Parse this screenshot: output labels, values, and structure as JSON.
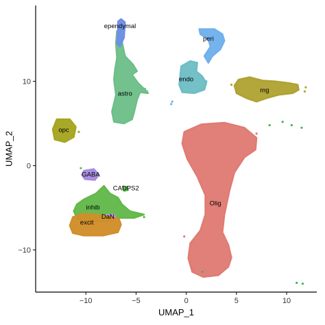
{
  "chart_data": {
    "type": "scatter",
    "xlabel": "UMAP_1",
    "ylabel": "UMAP_2",
    "xlim": [
      -15,
      13
    ],
    "ylim": [
      -15,
      19
    ],
    "x_ticks": [
      -10,
      -5,
      0,
      5,
      10
    ],
    "y_ticks": [
      -10,
      0,
      10
    ],
    "x_tick_labels": [
      "−10",
      "−5",
      "0",
      "5",
      "10"
    ],
    "y_tick_labels": [
      "−10",
      "0",
      "10"
    ],
    "grid": false,
    "legend": "none",
    "clusters": [
      {
        "name": "Olig",
        "color": "#E07B72",
        "label_at": [
          2.9,
          -4.5
        ],
        "outline": [
          [
            -0.2,
            4.0
          ],
          [
            1.5,
            4.9
          ],
          [
            3.8,
            5.1
          ],
          [
            5.8,
            4.5
          ],
          [
            7.0,
            3.3
          ],
          [
            6.9,
            1.9
          ],
          [
            5.8,
            1.0
          ],
          [
            4.8,
            -0.8
          ],
          [
            4.3,
            -3.0
          ],
          [
            3.8,
            -5.8
          ],
          [
            3.6,
            -7.9
          ],
          [
            4.2,
            -9.4
          ],
          [
            4.5,
            -10.9
          ],
          [
            4.2,
            -12.0
          ],
          [
            3.2,
            -13.0
          ],
          [
            1.7,
            -13.2
          ],
          [
            0.6,
            -12.6
          ],
          [
            0.2,
            -11.0
          ],
          [
            0.4,
            -9.2
          ],
          [
            1.4,
            -7.7
          ],
          [
            1.9,
            -5.8
          ],
          [
            1.9,
            -3.5
          ],
          [
            1.1,
            -1.3
          ],
          [
            0.1,
            0.8
          ],
          [
            -0.4,
            2.6
          ]
        ]
      },
      {
        "name": "astro",
        "color": "#6DBE87",
        "label_at": [
          -6.1,
          8.5
        ],
        "outline": [
          [
            -6.6,
            16.3
          ],
          [
            -6.4,
            14.7
          ],
          [
            -6.1,
            13.0
          ],
          [
            -5.3,
            12.0
          ],
          [
            -4.9,
            11.2
          ],
          [
            -5.4,
            10.8
          ],
          [
            -4.8,
            9.8
          ],
          [
            -4.1,
            9.0
          ],
          [
            -3.8,
            8.6
          ],
          [
            -4.6,
            8.7
          ],
          [
            -4.9,
            7.8
          ],
          [
            -5.2,
            6.3
          ],
          [
            -5.4,
            5.5
          ],
          [
            -6.2,
            5.0
          ],
          [
            -7.2,
            5.2
          ],
          [
            -7.4,
            6.4
          ],
          [
            -7.0,
            8.4
          ],
          [
            -7.2,
            10.2
          ],
          [
            -7.1,
            11.4
          ],
          [
            -6.9,
            12.8
          ],
          [
            -7.0,
            14.5
          ],
          [
            -6.9,
            16.0
          ]
        ]
      },
      {
        "name": "ependymal",
        "color": "#6E8FE6",
        "label_at": [
          -6.6,
          16.5
        ],
        "outline": [
          [
            -6.5,
            17.4
          ],
          [
            -6.1,
            17.0
          ],
          [
            -6.2,
            15.2
          ],
          [
            -6.6,
            14.1
          ],
          [
            -6.9,
            14.5
          ],
          [
            -6.8,
            16.0
          ],
          [
            -6.8,
            17.1
          ]
        ]
      },
      {
        "name": "peri",
        "color": "#6FB0EC",
        "label_at": [
          2.2,
          15.0
        ],
        "outline": [
          [
            1.3,
            16.2
          ],
          [
            2.8,
            16.2
          ],
          [
            3.6,
            15.6
          ],
          [
            3.8,
            14.8
          ],
          [
            3.4,
            13.8
          ],
          [
            2.6,
            13.0
          ],
          [
            2.2,
            12.2
          ],
          [
            1.8,
            13.0
          ],
          [
            2.4,
            14.1
          ],
          [
            2.2,
            15.0
          ],
          [
            1.4,
            15.6
          ]
        ]
      },
      {
        "name": "endo",
        "color": "#6DBDC5",
        "label_at": [
          0.0,
          10.2
        ],
        "outline": [
          [
            -0.5,
            11.8
          ],
          [
            0.4,
            12.4
          ],
          [
            1.1,
            12.2
          ],
          [
            1.0,
            11.2
          ],
          [
            1.6,
            10.6
          ],
          [
            2.0,
            9.8
          ],
          [
            1.8,
            9.0
          ],
          [
            0.8,
            8.6
          ],
          [
            -0.4,
            8.7
          ],
          [
            -0.7,
            9.6
          ],
          [
            -0.6,
            10.8
          ]
        ]
      },
      {
        "name": "mg",
        "color": "#B0A232",
        "label_at": [
          7.8,
          8.9
        ],
        "outline": [
          [
            5.2,
            10.2
          ],
          [
            6.3,
            10.5
          ],
          [
            7.6,
            10.1
          ],
          [
            8.8,
            10.0
          ],
          [
            10.2,
            9.8
          ],
          [
            11.1,
            9.6
          ],
          [
            11.2,
            9.0
          ],
          [
            10.6,
            8.6
          ],
          [
            9.2,
            8.4
          ],
          [
            8.0,
            8.0
          ],
          [
            7.0,
            7.6
          ],
          [
            6.0,
            8.0
          ],
          [
            5.0,
            8.6
          ],
          [
            4.8,
            9.5
          ]
        ]
      },
      {
        "name": "opc",
        "color": "#A6A51F",
        "label_at": [
          -12.2,
          4.2
        ],
        "outline": [
          [
            -12.9,
            5.5
          ],
          [
            -11.6,
            5.5
          ],
          [
            -11.0,
            4.6
          ],
          [
            -11.2,
            3.4
          ],
          [
            -12.1,
            2.8
          ],
          [
            -13.1,
            3.1
          ],
          [
            -13.3,
            4.3
          ]
        ]
      },
      {
        "name": "GABA",
        "color": "#A88BE0",
        "label_at": [
          -9.5,
          -1.1
        ],
        "outline": [
          [
            -10.2,
            -0.6
          ],
          [
            -9.2,
            -0.4
          ],
          [
            -8.7,
            -1.1
          ],
          [
            -9.1,
            -1.7
          ],
          [
            -10.1,
            -1.6
          ],
          [
            -10.4,
            -1.1
          ]
        ]
      },
      {
        "name": "CADPS2",
        "color": "#55B84E",
        "label_at": [
          -6.0,
          -2.7
        ],
        "outline": [
          [
            -6.3,
            -2.6
          ],
          [
            -5.9,
            -2.5
          ],
          [
            -5.8,
            -2.9
          ],
          [
            -6.2,
            -3.0
          ]
        ]
      },
      {
        "name": "inhib",
        "color": "#62B84A",
        "label_at": [
          -9.3,
          -5.0
        ],
        "outline": [
          [
            -10.2,
            -4.0
          ],
          [
            -9.0,
            -3.3
          ],
          [
            -8.2,
            -2.4
          ],
          [
            -7.6,
            -3.3
          ],
          [
            -6.8,
            -3.8
          ],
          [
            -6.4,
            -4.6
          ],
          [
            -5.6,
            -5.4
          ],
          [
            -4.2,
            -5.8
          ],
          [
            -5.2,
            -6.2
          ],
          [
            -6.6,
            -6.2
          ],
          [
            -7.7,
            -6.6
          ],
          [
            -9.2,
            -6.6
          ],
          [
            -10.8,
            -6.4
          ],
          [
            -11.2,
            -5.4
          ],
          [
            -10.9,
            -4.6
          ]
        ]
      },
      {
        "name": "DaN",
        "color": "#C98FE8",
        "label_at": [
          -7.8,
          -6.1
        ],
        "outline": [
          [
            -8.0,
            -5.9
          ],
          [
            -7.2,
            -5.8
          ],
          [
            -7.0,
            -6.3
          ],
          [
            -7.7,
            -6.5
          ],
          [
            -8.2,
            -6.2
          ]
        ]
      },
      {
        "name": "excit",
        "color": "#D18E2A",
        "label_at": [
          -9.9,
          -6.8
        ],
        "outline": [
          [
            -11.3,
            -6.1
          ],
          [
            -10.4,
            -5.7
          ],
          [
            -9.0,
            -5.8
          ],
          [
            -7.6,
            -6.1
          ],
          [
            -6.7,
            -6.3
          ],
          [
            -6.5,
            -7.0
          ],
          [
            -6.8,
            -7.9
          ],
          [
            -8.3,
            -8.3
          ],
          [
            -10.2,
            -8.3
          ],
          [
            -11.3,
            -8.0
          ],
          [
            -11.6,
            -7.1
          ]
        ]
      }
    ],
    "satellites": [
      {
        "color": "#6FB0EC",
        "points": [
          [
            -1.4,
            7.6
          ],
          [
            -1.5,
            7.3
          ]
        ]
      },
      {
        "color": "#6DBE87",
        "points": [
          [
            -3.9,
            8.8
          ],
          [
            -4.1,
            9.1
          ]
        ]
      },
      {
        "color": "#A6A51F",
        "points": [
          [
            -10.7,
            4.0
          ]
        ]
      },
      {
        "color": "#B0A232",
        "points": [
          [
            4.5,
            9.6
          ],
          [
            11.8,
            8.8
          ],
          [
            11.9,
            9.3
          ]
        ]
      },
      {
        "color": "#E07B72",
        "points": [
          [
            7.0,
            3.8
          ],
          [
            6.5,
            2.0
          ],
          [
            -0.2,
            -8.4
          ],
          [
            0.7,
            -12.2
          ]
        ]
      },
      {
        "color": "#3FB55C",
        "points": [
          [
            8.3,
            4.8
          ],
          [
            9.6,
            5.2
          ],
          [
            10.5,
            4.8
          ],
          [
            11.5,
            4.5
          ],
          [
            11.0,
            -13.9
          ],
          [
            11.6,
            -14.0
          ],
          [
            1.6,
            -12.6
          ]
        ]
      },
      {
        "color": "#62B84A",
        "points": [
          [
            -10.5,
            -0.3
          ],
          [
            -4.2,
            -6.1
          ],
          [
            -6.3,
            -2.5
          ]
        ]
      },
      {
        "color": "#6DBDC5",
        "points": [
          [
            2.0,
            10.0
          ],
          [
            1.9,
            9.5
          ]
        ]
      }
    ]
  }
}
